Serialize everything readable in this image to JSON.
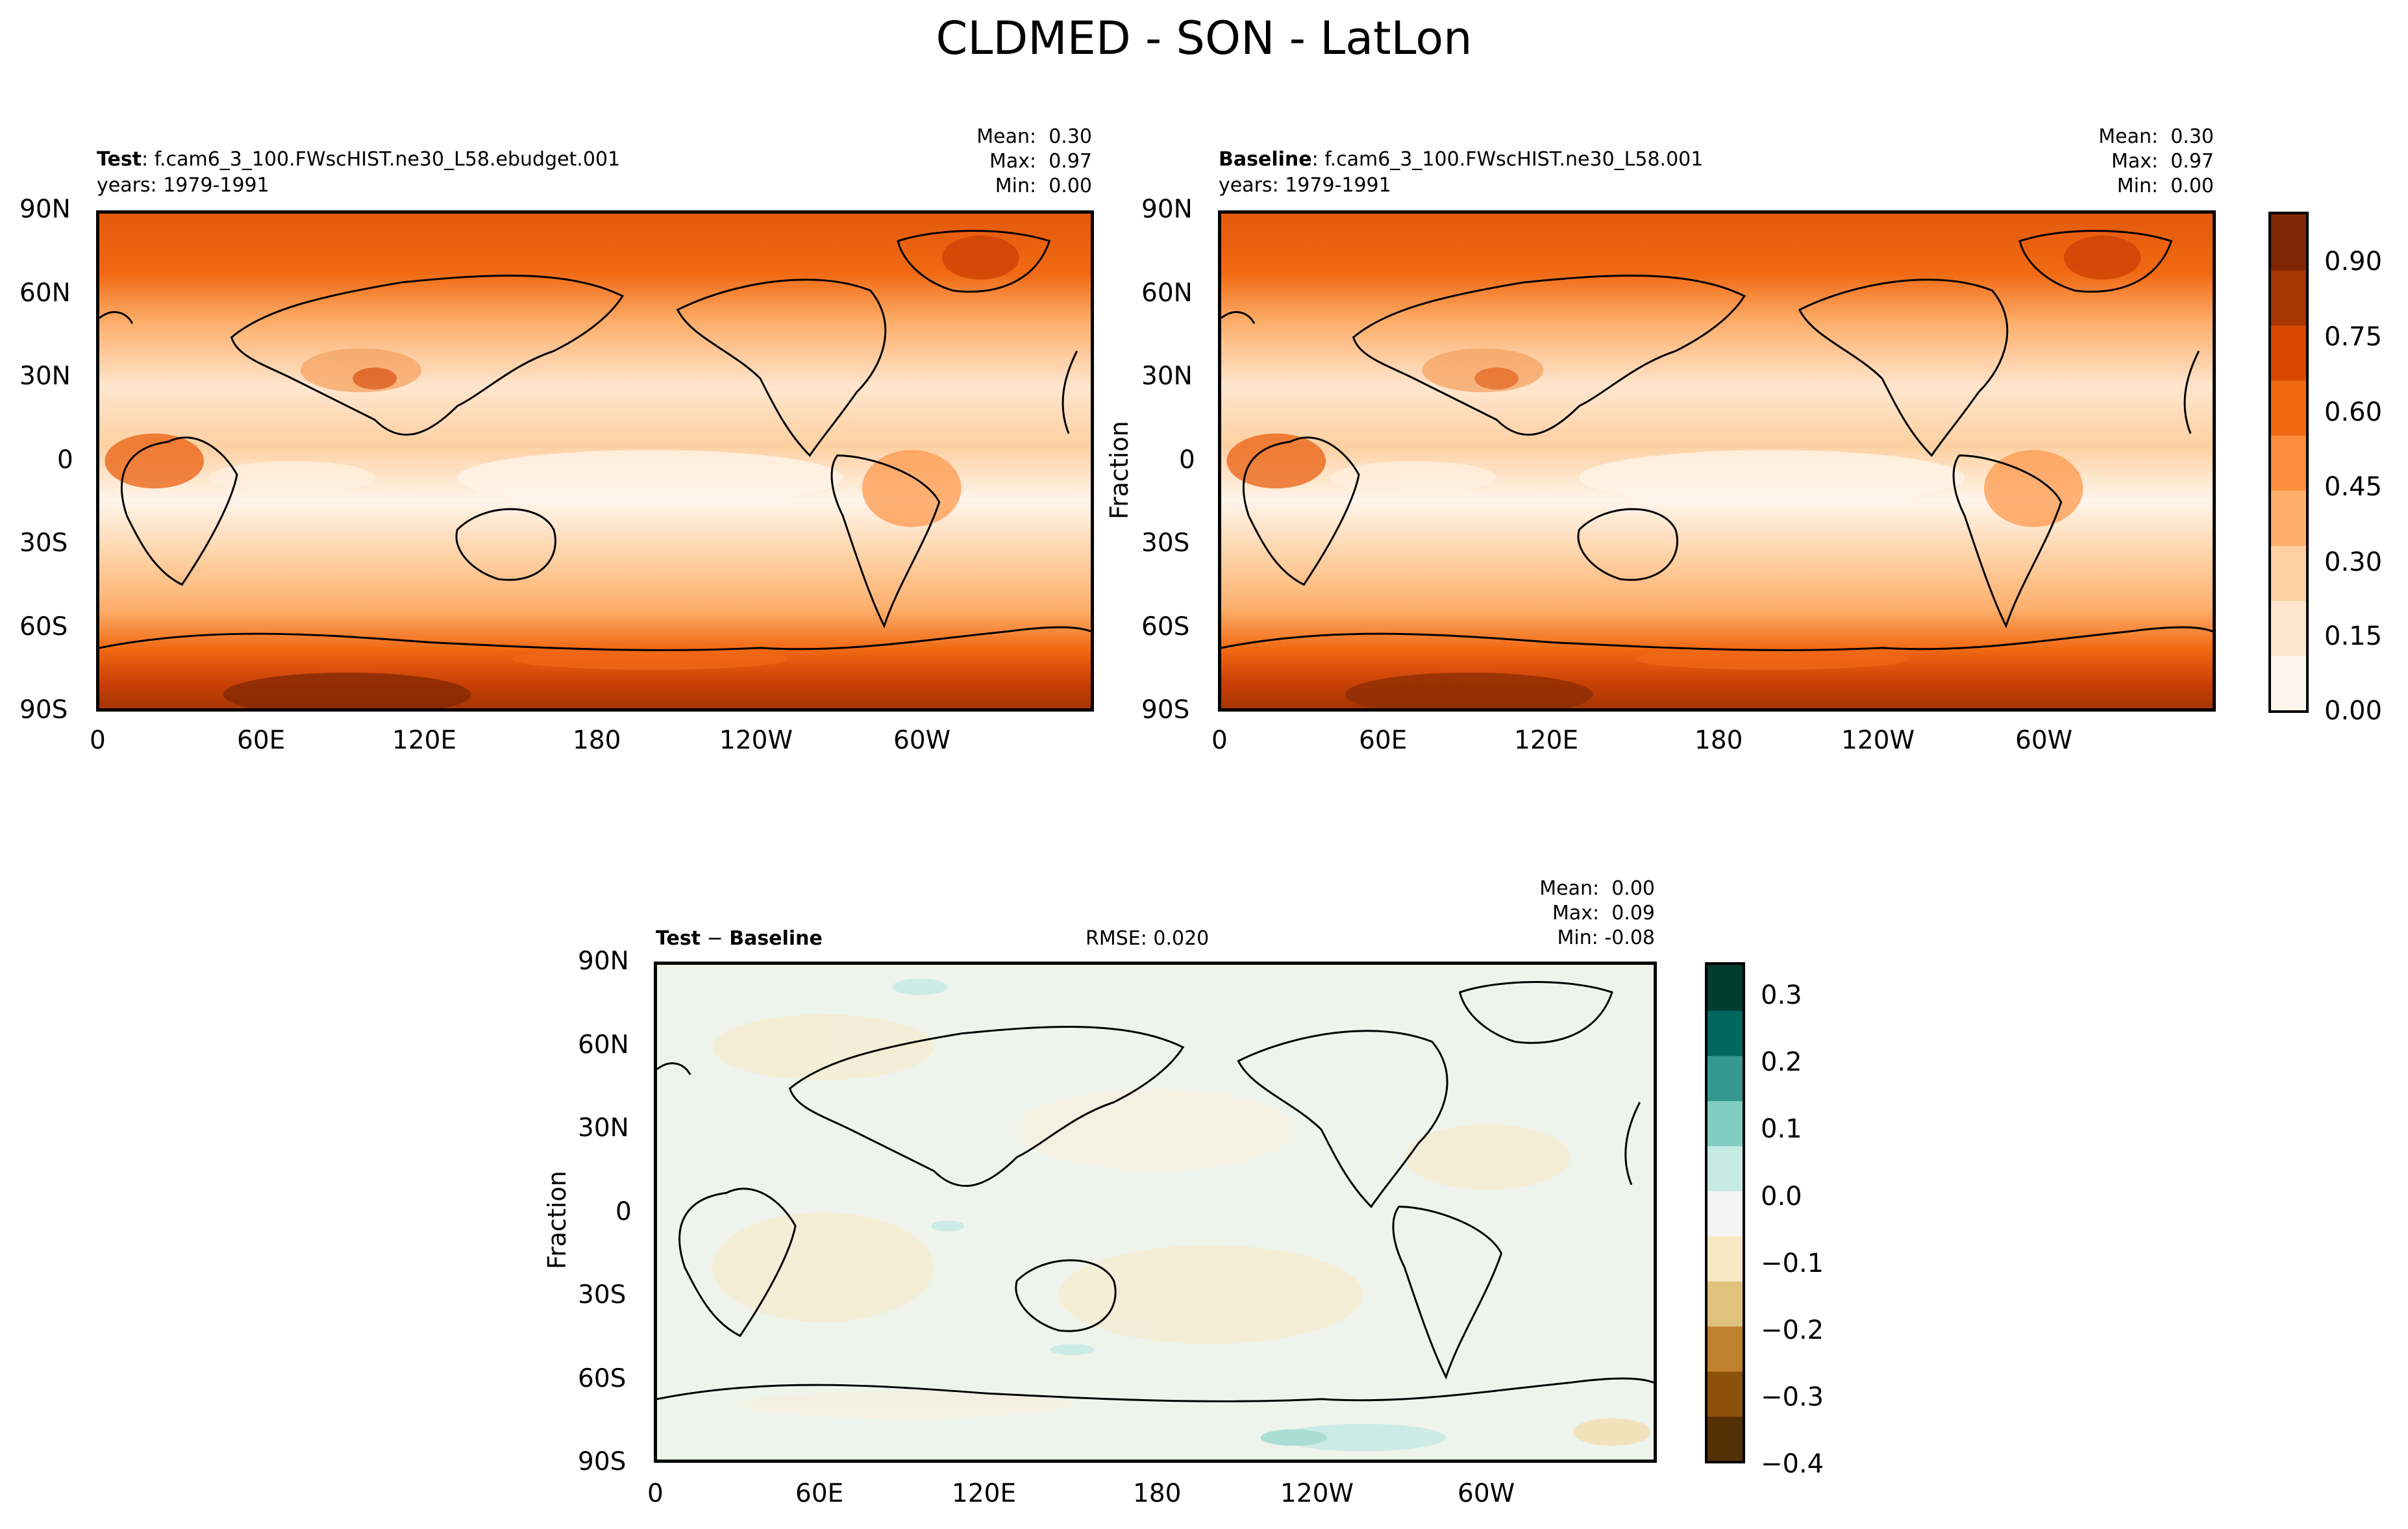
{
  "title": "CLDMED - SON - LatLon",
  "panels": {
    "test": {
      "label_bold": "Test",
      "label_rest": ": f.cam6_3_100.FWscHIST.ne30_L58.ebudget.001",
      "years": "years: 1979-1991",
      "stats": {
        "mean": "Mean:  0.30",
        "max": "Max:  0.97",
        "min": "Min:  0.00"
      }
    },
    "baseline": {
      "label_bold": "Baseline",
      "label_rest": ": f.cam6_3_100.FWscHIST.ne30_L58.001",
      "years": "years: 1979-1991",
      "ylabel": "Fraction",
      "stats": {
        "mean": "Mean:  0.30",
        "max": "Max:  0.97",
        "min": "Min:  0.00"
      }
    },
    "diff": {
      "label_bold": "Test",
      "label_mid": " − ",
      "label_bold2": "Baseline",
      "rmse": "RMSE: 0.020",
      "ylabel": "Fraction",
      "stats": {
        "mean": "Mean:  0.00",
        "max": "Max:  0.09",
        "min": "Min: -0.08"
      }
    }
  },
  "axes": {
    "lat_ticks": [
      "90N",
      "60N",
      "30N",
      "0",
      "30S",
      "60S",
      "90S"
    ],
    "lon_ticks": [
      "0",
      "60E",
      "120E",
      "180",
      "120W",
      "60W"
    ]
  },
  "colorbars": {
    "main": {
      "colormap": "Oranges",
      "ticks": [
        "0.90",
        "0.75",
        "0.60",
        "0.45",
        "0.30",
        "0.15",
        "0.00"
      ],
      "colors": [
        "#fff5eb",
        "#fee6ce",
        "#fdd0a2",
        "#fdae6b",
        "#fd8d3c",
        "#f16913",
        "#d94801",
        "#a63603",
        "#7f2704"
      ]
    },
    "diff": {
      "colormap": "BrBG",
      "ticks": [
        "0.3",
        "0.2",
        "0.1",
        "0.0",
        "−0.1",
        "−0.2",
        "−0.3",
        "−0.4"
      ],
      "colors": [
        "#543005",
        "#8c510a",
        "#bf812d",
        "#dfc27d",
        "#f6e8c3",
        "#f5f5f5",
        "#c7eae5",
        "#80cdc1",
        "#35978f",
        "#01665e",
        "#003c30"
      ]
    }
  },
  "map_colors": {
    "test_base": "#fdae6b",
    "diff_base": "#eef4ec"
  }
}
